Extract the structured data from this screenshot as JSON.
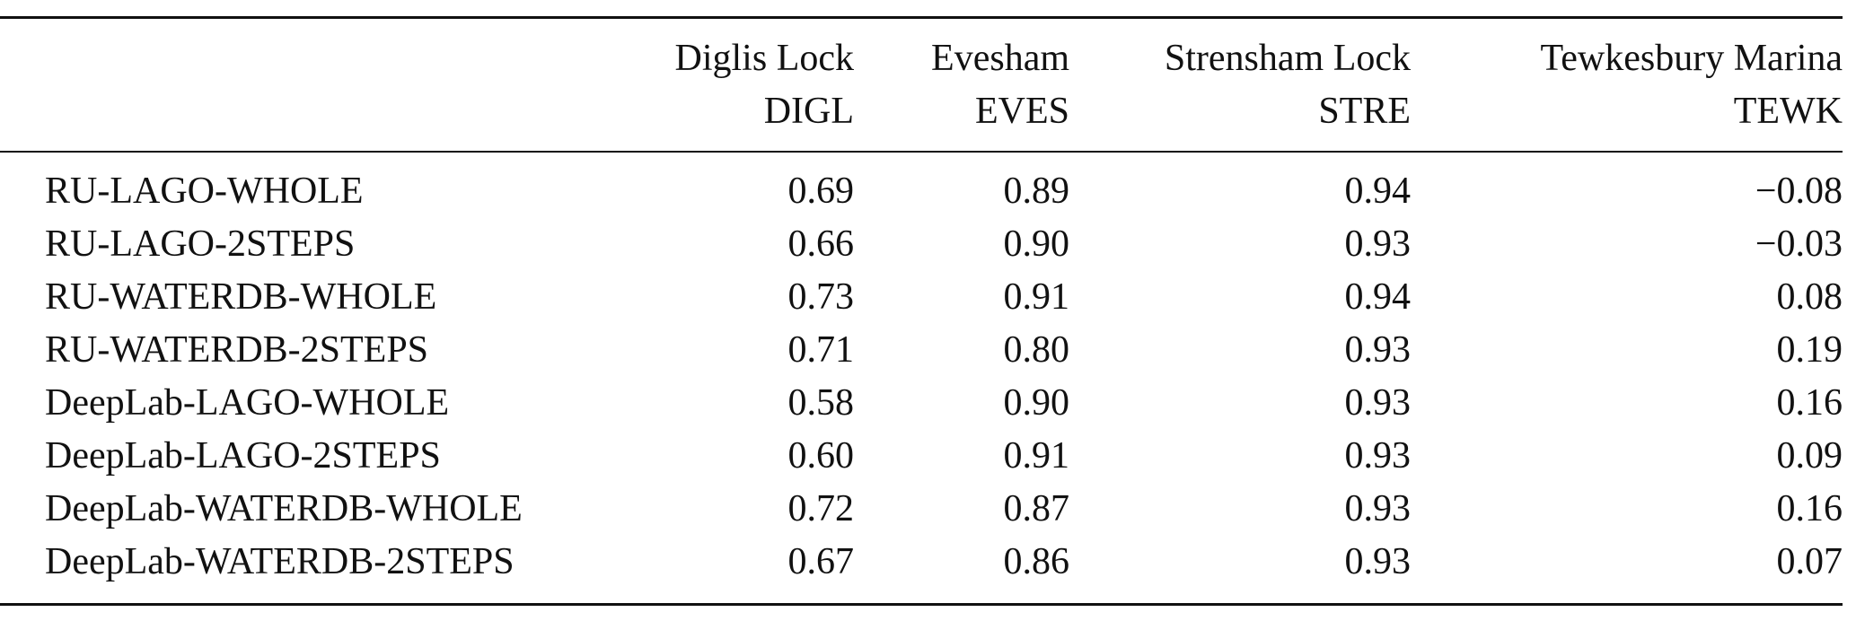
{
  "table": {
    "columns": [
      {
        "name": "Diglis Lock",
        "code": "DIGL"
      },
      {
        "name": "Evesham",
        "code": "EVES"
      },
      {
        "name": "Strensham Lock",
        "code": "STRE"
      },
      {
        "name": "Tewkesbury Marina",
        "code": "TEWK"
      }
    ],
    "rows": [
      {
        "method": "RU-LAGO-WHOLE",
        "values": [
          "0.69",
          "0.89",
          "0.94",
          "−0.08"
        ]
      },
      {
        "method": "RU-LAGO-2STEPS",
        "values": [
          "0.66",
          "0.90",
          "0.93",
          "−0.03"
        ]
      },
      {
        "method": "RU-WATERDB-WHOLE",
        "values": [
          "0.73",
          "0.91",
          "0.94",
          "0.08"
        ]
      },
      {
        "method": "RU-WATERDB-2STEPS",
        "values": [
          "0.71",
          "0.80",
          "0.93",
          "0.19"
        ]
      },
      {
        "method": "DeepLab-LAGO-WHOLE",
        "values": [
          "0.58",
          "0.90",
          "0.93",
          "0.16"
        ]
      },
      {
        "method": "DeepLab-LAGO-2STEPS",
        "values": [
          "0.60",
          "0.91",
          "0.93",
          "0.09"
        ]
      },
      {
        "method": "DeepLab-WATERDB-WHOLE",
        "values": [
          "0.72",
          "0.87",
          "0.93",
          "0.16"
        ]
      },
      {
        "method": "DeepLab-WATERDB-2STEPS",
        "values": [
          "0.67",
          "0.86",
          "0.93",
          "0.07"
        ]
      }
    ]
  }
}
